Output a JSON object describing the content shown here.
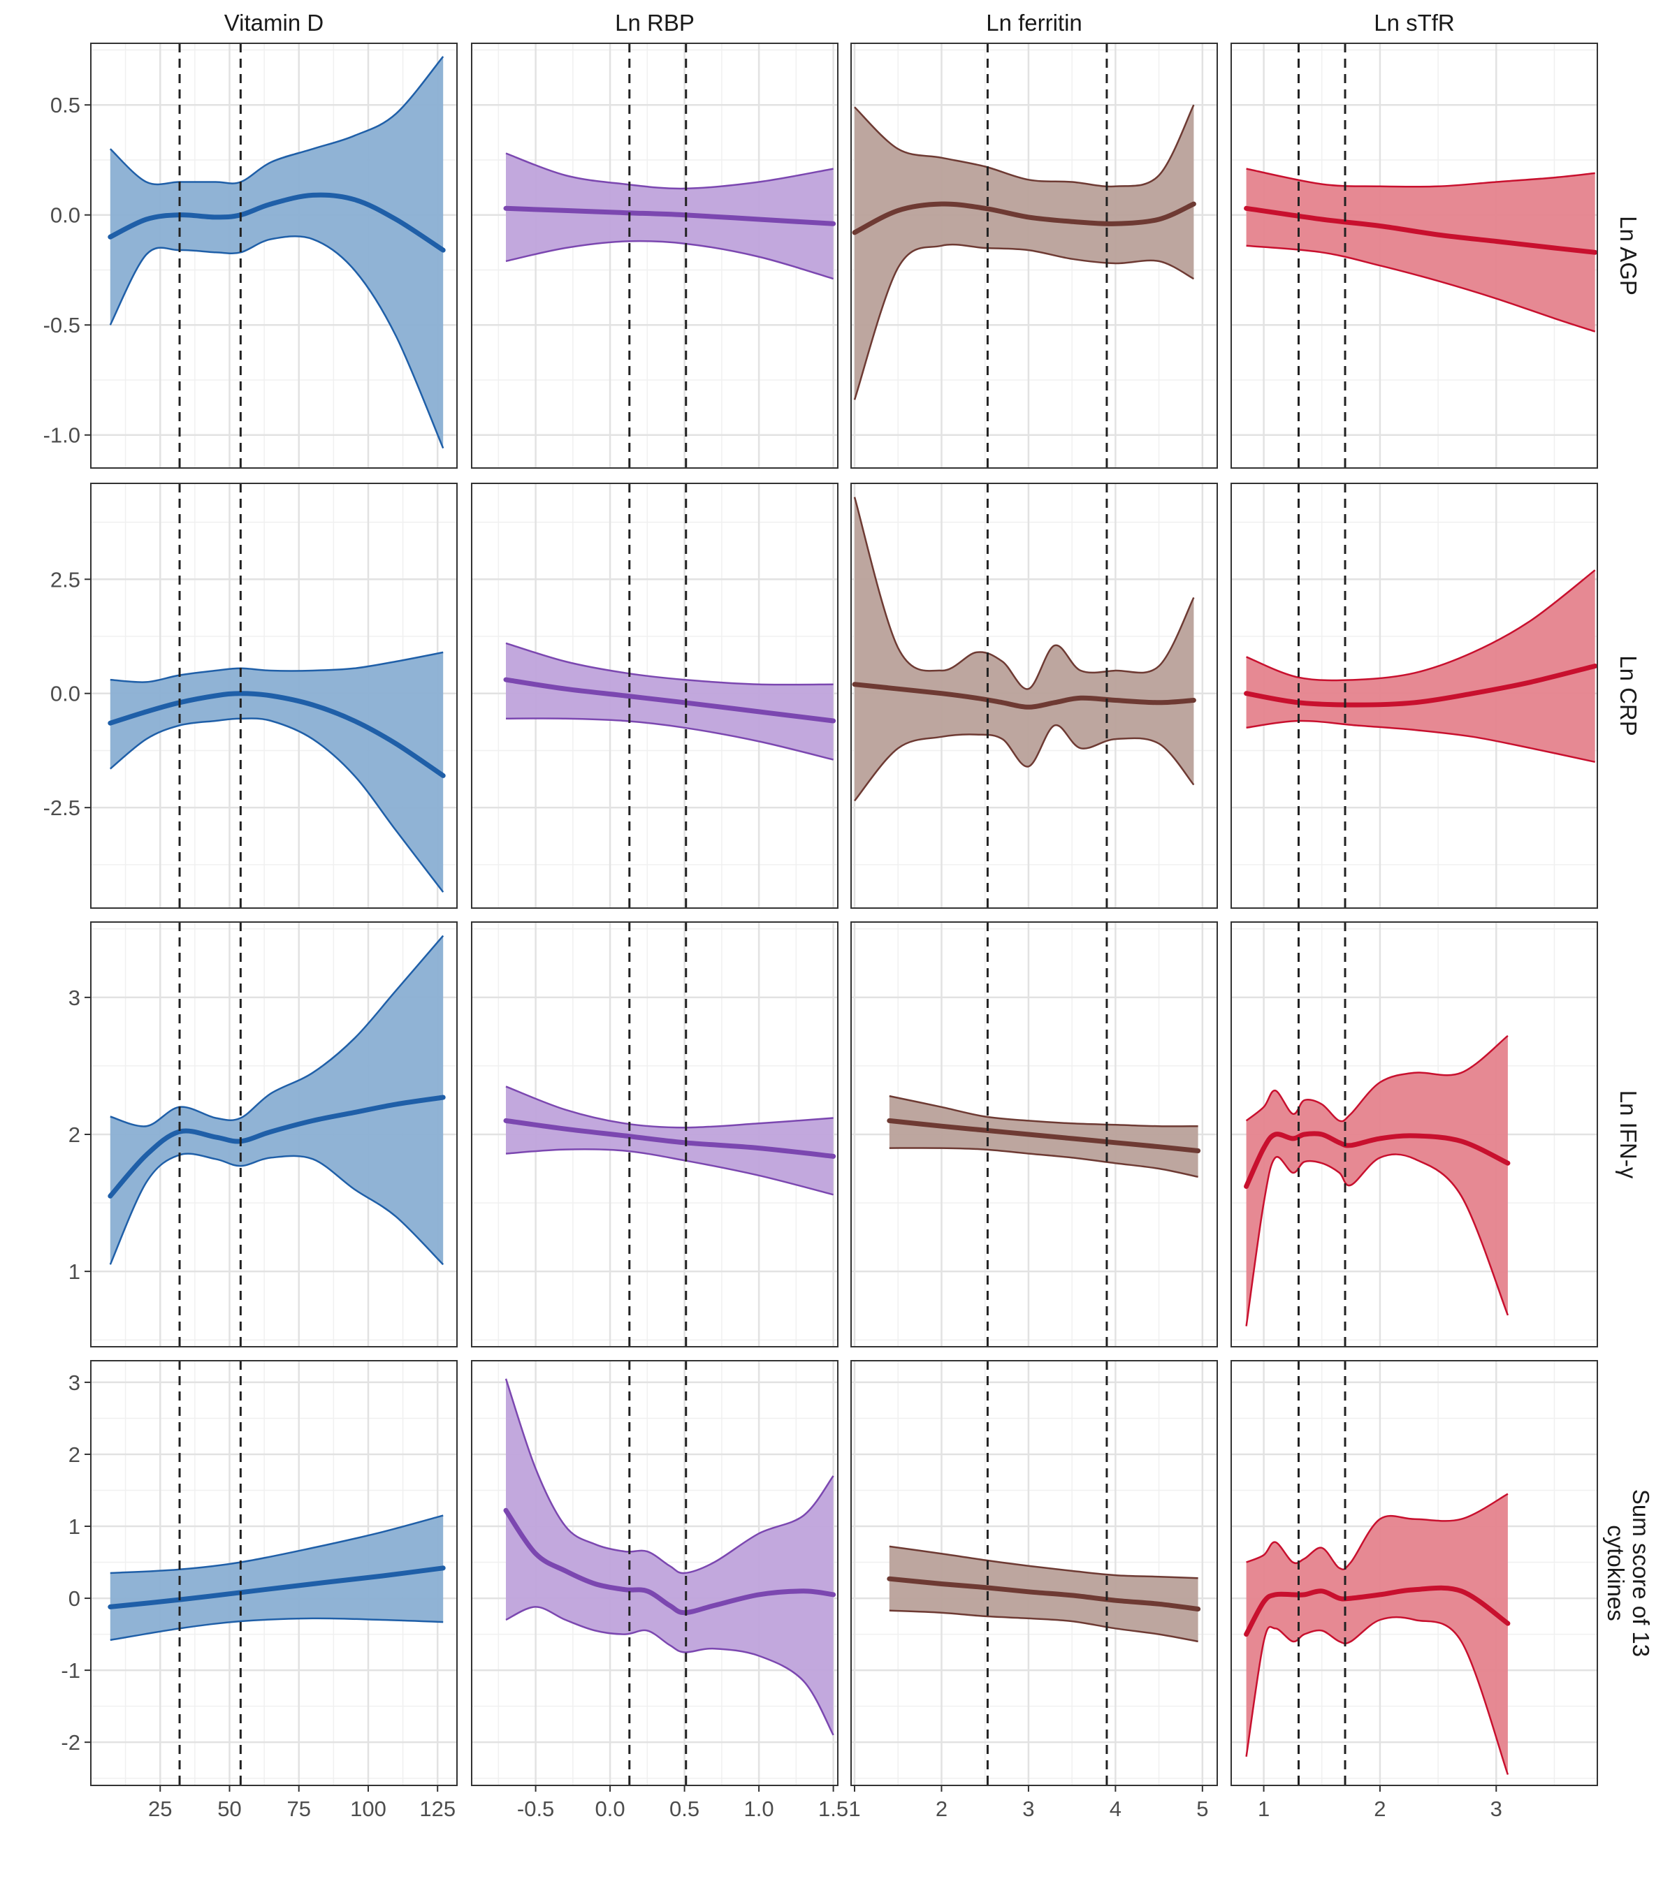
{
  "chart_data": {
    "type": "line",
    "title": "",
    "style": {
      "grid": true,
      "ci_bands": true,
      "reference_lines": "dashed vertical lines"
    },
    "columns": [
      {
        "label": "Vitamin D",
        "color": "#1F5FA8",
        "fill": "#8AAFD3",
        "xlim": [
          0,
          132
        ],
        "ticks": [
          25,
          50,
          75,
          100,
          125
        ],
        "tick_labels": [
          "25",
          "50",
          "75",
          "100",
          "125"
        ],
        "ref_lines": [
          32,
          54
        ]
      },
      {
        "label": "Ln RBP",
        "color": "#7B47B0",
        "fill": "#BFA3DB",
        "xlim": [
          -0.93,
          1.53
        ],
        "ticks": [
          -0.5,
          0,
          0.5,
          1.0,
          1.5
        ],
        "tick_labels": [
          "-0.5",
          "0.0",
          "0.5",
          "1.0",
          "1.5"
        ],
        "ref_lines": [
          0.13,
          0.51
        ]
      },
      {
        "label": "Ln ferritin",
        "color": "#6E3A33",
        "fill": "#B9A19A",
        "xlim": [
          0.96,
          5.17
        ],
        "ticks": [
          1,
          2,
          3,
          4,
          5
        ],
        "tick_labels": [
          "1",
          "2",
          "3",
          "4",
          "5"
        ],
        "ref_lines": [
          2.53,
          3.9
        ]
      },
      {
        "label": "Ln sTfR",
        "color": "#C8102E",
        "fill": "#E5838D",
        "xlim": [
          0.72,
          3.87
        ],
        "ticks": [
          1,
          2,
          3
        ],
        "tick_labels": [
          "1",
          "2",
          "3"
        ],
        "ref_lines": [
          1.3,
          1.7
        ]
      }
    ],
    "rows": [
      {
        "label": "Ln AGP",
        "ylim": [
          -1.15,
          0.78
        ],
        "ticks": [
          0.5,
          0,
          -0.5,
          -1.0
        ],
        "tick_labels": [
          "0.5",
          "0.0",
          "-0.5",
          "-1.0"
        ]
      },
      {
        "label": "Ln CRP",
        "ylim": [
          -4.7,
          4.6
        ],
        "ticks": [
          2.5,
          0,
          -2.5
        ],
        "tick_labels": [
          "2.5",
          "0.0",
          "-2.5"
        ]
      },
      {
        "label": "Ln IFN-γ",
        "ylim": [
          0.45,
          3.55
        ],
        "ticks": [
          3,
          2,
          1
        ],
        "tick_labels": [
          "3",
          "2",
          "1"
        ]
      },
      {
        "label_lines": [
          "Sum score of 13",
          "cytokines"
        ],
        "ylim": [
          -2.6,
          3.3
        ],
        "ticks": [
          3,
          2,
          1,
          0,
          -1,
          -2
        ],
        "tick_labels": [
          "3",
          "2",
          "1",
          "0",
          "-1",
          "-2"
        ]
      }
    ],
    "panels": [
      [
        {
          "x": [
            7,
            20,
            32,
            45,
            54,
            65,
            80,
            95,
            110,
            127
          ],
          "fit": [
            -0.1,
            -0.02,
            0.0,
            -0.01,
            0.0,
            0.05,
            0.09,
            0.07,
            -0.02,
            -0.16
          ],
          "upper": [
            0.3,
            0.15,
            0.15,
            0.15,
            0.15,
            0.24,
            0.3,
            0.36,
            0.46,
            0.72
          ],
          "lower": [
            -0.5,
            -0.18,
            -0.16,
            -0.17,
            -0.17,
            -0.11,
            -0.11,
            -0.25,
            -0.55,
            -1.06
          ]
        },
        {
          "x": [
            -0.7,
            -0.3,
            0.1,
            0.5,
            1.0,
            1.5
          ],
          "fit": [
            0.03,
            0.02,
            0.01,
            0.0,
            -0.02,
            -0.04
          ],
          "upper": [
            0.28,
            0.18,
            0.14,
            0.12,
            0.15,
            0.21
          ],
          "lower": [
            -0.21,
            -0.15,
            -0.12,
            -0.13,
            -0.19,
            -0.29
          ]
        },
        {
          "x": [
            1.0,
            1.5,
            2.0,
            2.5,
            3.0,
            3.5,
            4.0,
            4.5,
            4.9
          ],
          "fit": [
            -0.08,
            0.02,
            0.05,
            0.03,
            -0.01,
            -0.03,
            -0.04,
            -0.02,
            0.05
          ],
          "upper": [
            0.49,
            0.3,
            0.26,
            0.22,
            0.16,
            0.15,
            0.13,
            0.18,
            0.5
          ],
          "lower": [
            -0.84,
            -0.24,
            -0.14,
            -0.15,
            -0.16,
            -0.2,
            -0.22,
            -0.21,
            -0.29
          ]
        },
        {
          "x": [
            0.85,
            1.5,
            2.0,
            2.5,
            3.0,
            3.5,
            3.85
          ],
          "fit": [
            0.03,
            -0.02,
            -0.05,
            -0.09,
            -0.12,
            -0.15,
            -0.17
          ],
          "upper": [
            0.21,
            0.14,
            0.13,
            0.13,
            0.15,
            0.17,
            0.19
          ],
          "lower": [
            -0.14,
            -0.17,
            -0.23,
            -0.3,
            -0.38,
            -0.47,
            -0.53
          ]
        }
      ],
      [
        {
          "x": [
            7,
            20,
            32,
            45,
            54,
            65,
            80,
            95,
            110,
            127
          ],
          "fit": [
            -0.65,
            -0.4,
            -0.2,
            -0.05,
            0.0,
            -0.05,
            -0.25,
            -0.6,
            -1.1,
            -1.8
          ],
          "upper": [
            0.3,
            0.25,
            0.4,
            0.5,
            0.55,
            0.5,
            0.5,
            0.55,
            0.7,
            0.9
          ],
          "lower": [
            -1.65,
            -1.0,
            -0.7,
            -0.6,
            -0.55,
            -0.6,
            -1.0,
            -1.8,
            -3.0,
            -4.35
          ]
        },
        {
          "x": [
            -0.7,
            -0.3,
            0.1,
            0.5,
            1.0,
            1.5
          ],
          "fit": [
            0.3,
            0.1,
            -0.05,
            -0.2,
            -0.4,
            -0.6
          ],
          "upper": [
            1.1,
            0.7,
            0.45,
            0.3,
            0.2,
            0.2
          ],
          "lower": [
            -0.55,
            -0.55,
            -0.6,
            -0.75,
            -1.05,
            -1.45
          ]
        },
        {
          "x": [
            1.0,
            1.5,
            2.0,
            2.4,
            2.7,
            3.0,
            3.3,
            3.6,
            4.0,
            4.5,
            4.9
          ],
          "fit": [
            0.2,
            0.1,
            0.0,
            -0.1,
            -0.2,
            -0.3,
            -0.2,
            -0.1,
            -0.15,
            -0.2,
            -0.15
          ],
          "upper": [
            4.3,
            1.0,
            0.5,
            0.9,
            0.7,
            0.1,
            1.05,
            0.5,
            0.5,
            0.6,
            2.1
          ],
          "lower": [
            -2.35,
            -1.2,
            -0.95,
            -0.9,
            -1.0,
            -1.6,
            -0.7,
            -1.2,
            -1.0,
            -1.1,
            -2.0
          ]
        },
        {
          "x": [
            0.85,
            1.3,
            1.8,
            2.3,
            2.8,
            3.3,
            3.85
          ],
          "fit": [
            0.0,
            -0.2,
            -0.25,
            -0.2,
            0.0,
            0.25,
            0.6
          ],
          "upper": [
            0.8,
            0.35,
            0.3,
            0.45,
            0.9,
            1.6,
            2.7
          ],
          "lower": [
            -0.75,
            -0.6,
            -0.7,
            -0.8,
            -0.95,
            -1.2,
            -1.5
          ]
        }
      ],
      [
        {
          "x": [
            7,
            20,
            32,
            45,
            54,
            65,
            80,
            95,
            110,
            127
          ],
          "fit": [
            1.55,
            1.85,
            2.02,
            1.98,
            1.95,
            2.02,
            2.1,
            2.16,
            2.22,
            2.27
          ],
          "upper": [
            2.13,
            2.06,
            2.2,
            2.12,
            2.12,
            2.3,
            2.45,
            2.7,
            3.05,
            3.45
          ],
          "lower": [
            1.05,
            1.65,
            1.85,
            1.82,
            1.77,
            1.83,
            1.82,
            1.6,
            1.4,
            1.05
          ]
        },
        {
          "x": [
            -0.7,
            -0.3,
            0.1,
            0.5,
            1.0,
            1.5
          ],
          "fit": [
            2.1,
            2.04,
            1.99,
            1.94,
            1.9,
            1.84
          ],
          "upper": [
            2.35,
            2.18,
            2.08,
            2.05,
            2.08,
            2.12
          ],
          "lower": [
            1.86,
            1.89,
            1.88,
            1.81,
            1.7,
            1.56
          ]
        },
        {
          "x": [
            1.4,
            2.0,
            2.5,
            3.0,
            3.5,
            4.0,
            4.5,
            4.95
          ],
          "fit": [
            2.1,
            2.06,
            2.03,
            2.0,
            1.97,
            1.94,
            1.91,
            1.88
          ],
          "upper": [
            2.28,
            2.2,
            2.13,
            2.1,
            2.08,
            2.07,
            2.06,
            2.06
          ],
          "lower": [
            1.9,
            1.9,
            1.89,
            1.86,
            1.83,
            1.79,
            1.75,
            1.69
          ]
        },
        {
          "x": [
            0.85,
            1.0,
            1.1,
            1.25,
            1.35,
            1.5,
            1.65,
            1.75,
            2.0,
            2.3,
            2.7,
            3.1
          ],
          "fit": [
            1.62,
            1.9,
            2.0,
            1.97,
            2.0,
            2.0,
            1.94,
            1.92,
            1.97,
            1.99,
            1.95,
            1.79
          ],
          "upper": [
            2.1,
            2.2,
            2.32,
            2.15,
            2.25,
            2.22,
            2.1,
            2.15,
            2.38,
            2.45,
            2.45,
            2.72
          ],
          "lower": [
            0.6,
            1.5,
            1.83,
            1.72,
            1.8,
            1.79,
            1.72,
            1.63,
            1.83,
            1.82,
            1.55,
            0.68
          ]
        }
      ],
      [
        {
          "x": [
            7,
            32,
            54,
            80,
            105,
            127
          ],
          "fit": [
            -0.12,
            -0.02,
            0.08,
            0.2,
            0.31,
            0.42
          ],
          "upper": [
            0.35,
            0.4,
            0.5,
            0.7,
            0.92,
            1.15
          ],
          "lower": [
            -0.58,
            -0.42,
            -0.32,
            -0.28,
            -0.3,
            -0.33
          ]
        },
        {
          "x": [
            -0.7,
            -0.5,
            -0.3,
            -0.1,
            0.1,
            0.25,
            0.4,
            0.5,
            0.7,
            1.0,
            1.3,
            1.5
          ],
          "fit": [
            1.22,
            0.62,
            0.38,
            0.2,
            0.12,
            0.1,
            -0.1,
            -0.2,
            -0.1,
            0.05,
            0.1,
            0.05
          ],
          "upper": [
            3.05,
            1.8,
            1.0,
            0.75,
            0.65,
            0.65,
            0.45,
            0.35,
            0.5,
            0.9,
            1.15,
            1.7
          ],
          "lower": [
            -0.3,
            -0.12,
            -0.3,
            -0.45,
            -0.5,
            -0.45,
            -0.65,
            -0.75,
            -0.7,
            -0.8,
            -1.15,
            -1.9
          ]
        },
        {
          "x": [
            1.4,
            2.0,
            2.5,
            3.0,
            3.5,
            4.0,
            4.5,
            4.95
          ],
          "fit": [
            0.27,
            0.2,
            0.15,
            0.09,
            0.04,
            -0.03,
            -0.08,
            -0.15
          ],
          "upper": [
            0.72,
            0.62,
            0.53,
            0.45,
            0.38,
            0.32,
            0.3,
            0.28
          ],
          "lower": [
            -0.17,
            -0.2,
            -0.25,
            -0.28,
            -0.32,
            -0.42,
            -0.5,
            -0.6
          ]
        },
        {
          "x": [
            0.85,
            1.0,
            1.1,
            1.25,
            1.35,
            1.5,
            1.65,
            1.75,
            2.0,
            2.3,
            2.7,
            3.1
          ],
          "fit": [
            -0.5,
            -0.05,
            0.05,
            0.05,
            0.05,
            0.1,
            0.0,
            0.0,
            0.05,
            0.12,
            0.1,
            -0.35
          ],
          "upper": [
            0.5,
            0.6,
            0.78,
            0.5,
            0.55,
            0.7,
            0.42,
            0.5,
            1.1,
            1.1,
            1.1,
            1.45
          ],
          "lower": [
            -2.2,
            -0.6,
            -0.42,
            -0.6,
            -0.5,
            -0.45,
            -0.6,
            -0.6,
            -0.3,
            -0.3,
            -0.6,
            -2.45
          ]
        }
      ]
    ]
  }
}
